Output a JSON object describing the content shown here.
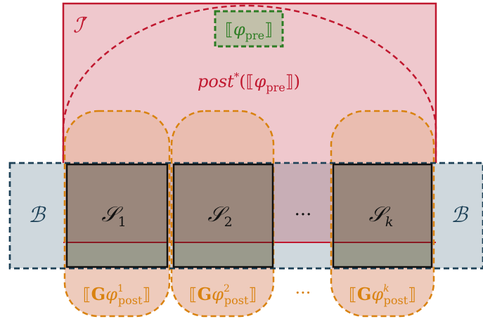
{
  "colors": {
    "invariant_fill": "#efc8cd",
    "invariant_stroke": "#c0182f",
    "bad_fill": "#cfd8dd",
    "bad_stroke": "#1d4157",
    "post_fill": "#e8b9a5",
    "post_stroke": "#d9820f",
    "pre_fill": "#c2c0aa",
    "pre_stroke": "#2d7d24",
    "state_fill": "#9a877c",
    "state_lower_fill": "#9a9a8c",
    "state_stroke": "#111111",
    "gap_fill": "#c8aeb6"
  },
  "labels": {
    "invariant_base": "ℐ",
    "invariant_prime": "′",
    "pre_open": "⟦",
    "pre_phi": "φ",
    "pre_sub": "pre",
    "pre_close": "⟧",
    "reach_post": "post",
    "reach_star": "*",
    "reach_open": "(⟦",
    "reach_phi": "φ",
    "reach_sub": "pre",
    "reach_close": "⟧)",
    "bad_left": "ℬ",
    "bad_right": "ℬ",
    "state_base": "𝒮",
    "state_1_sub": "1",
    "state_2_sub": "2",
    "state_k_sub": "k",
    "middle_dots": "···",
    "bottom_dots": "···",
    "g_open": "⟦",
    "g_bold": "G",
    "g_phi": "φ",
    "g_sub": "post",
    "g_close": "⟧",
    "g_1_sup": "1",
    "g_2_sup": "2",
    "g_k_sup": "k"
  }
}
